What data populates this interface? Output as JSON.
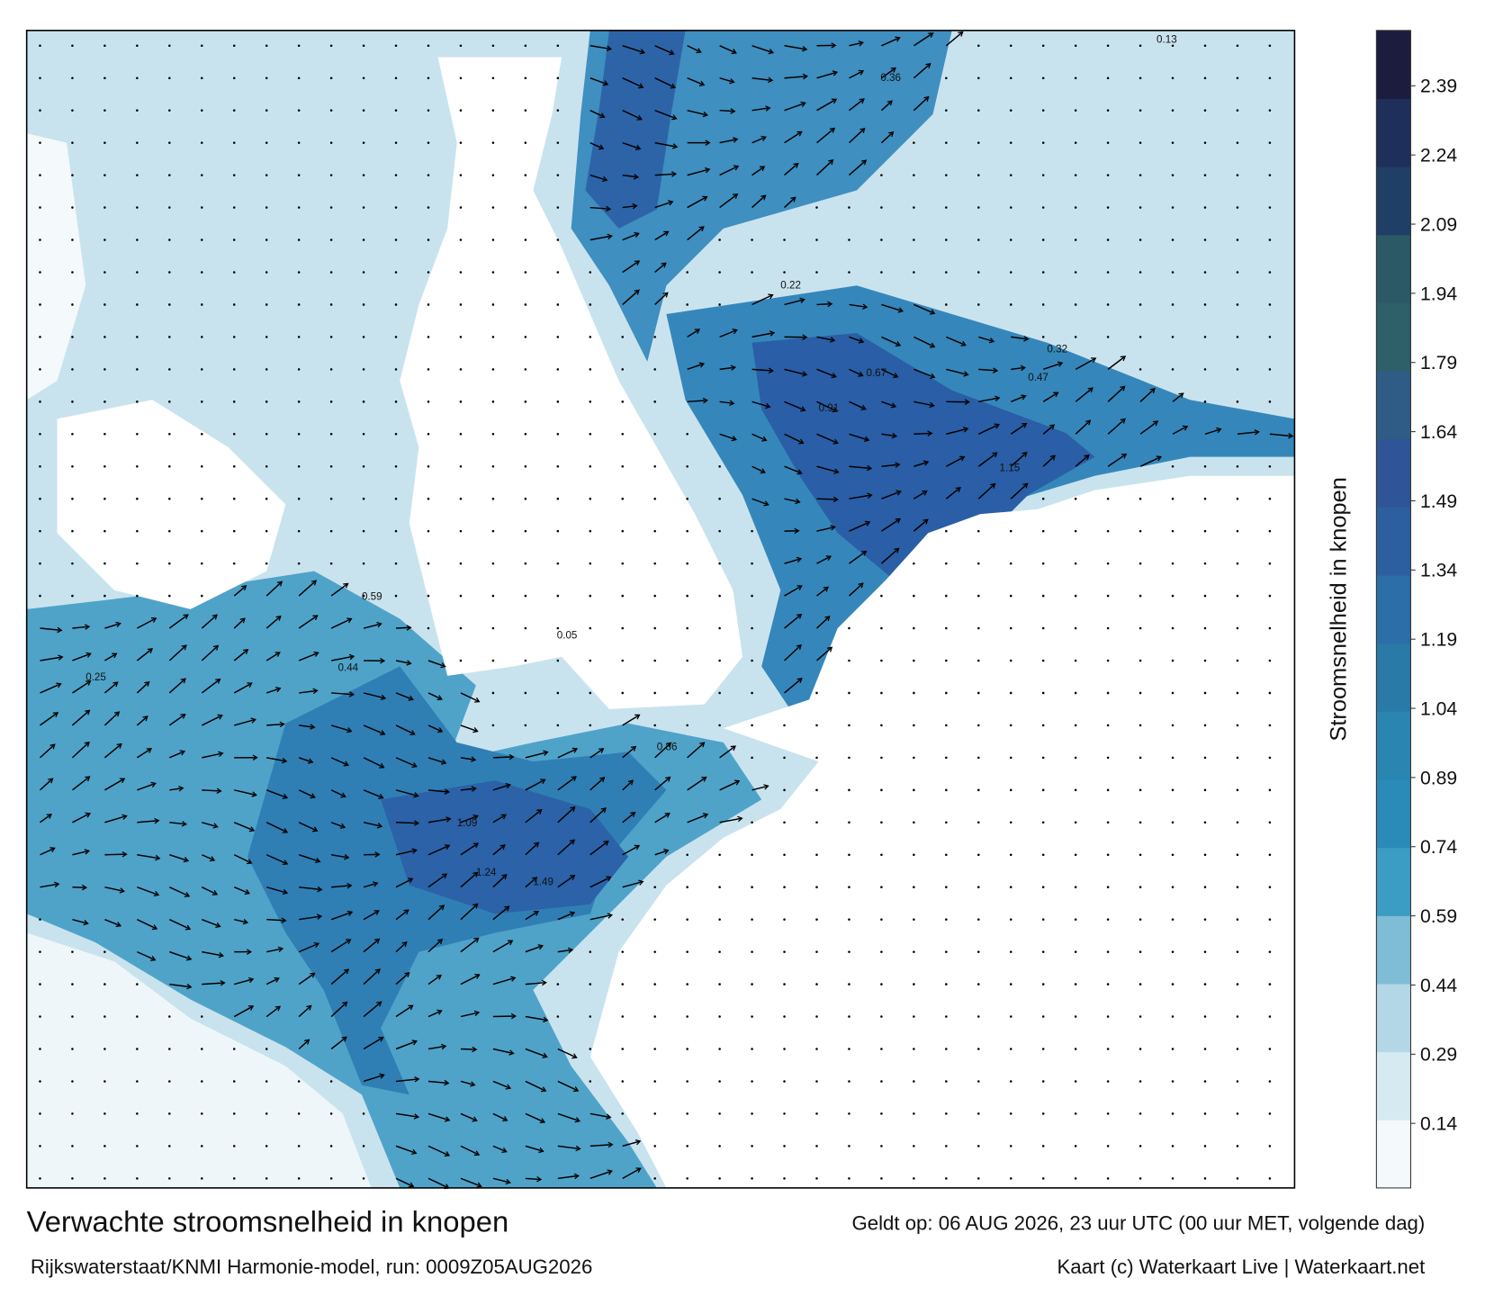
{
  "title": "Verwachte stroomsnelheid in knopen",
  "valid_time": "Geldt op: 06 AUG 2026, 23 uur UTC (00 uur MET, volgende dag)",
  "source": "Rijkswaterstaat/KNMI Harmonie-model, run: 0009Z05AUG2026",
  "credit": "Kaart (c) Waterkaart Live | Waterkaart.net",
  "colorbar": {
    "label": "Stroomsnelheid in knopen",
    "lim": [
      0,
      2.51
    ],
    "ticks": [
      0.14,
      0.29,
      0.44,
      0.59,
      0.74,
      0.89,
      1.04,
      1.19,
      1.34,
      1.49,
      1.64,
      1.79,
      1.94,
      2.09,
      2.24,
      2.39
    ],
    "colors": [
      "#f4f9fb",
      "#d6eaf1",
      "#b3d7e6",
      "#7fbcd6",
      "#3b9cc4",
      "#2a8ab8",
      "#2a86b1",
      "#2a7aa8",
      "#2b6ea8",
      "#2c5f9f",
      "#2f5598",
      "#2e5c86",
      "#2d6068",
      "#2b5a66",
      "#1f3f66",
      "#1d2f5a",
      "#1b1c3e"
    ]
  },
  "current_labels": [
    "0.86",
    "1.24",
    "1.49",
    "0.91",
    "1.15",
    "0.67",
    "0.44",
    "0.05",
    "0.32",
    "0.13",
    "0.59",
    "1.09",
    "0.47",
    "0.25",
    "0.36",
    "0.22"
  ]
}
